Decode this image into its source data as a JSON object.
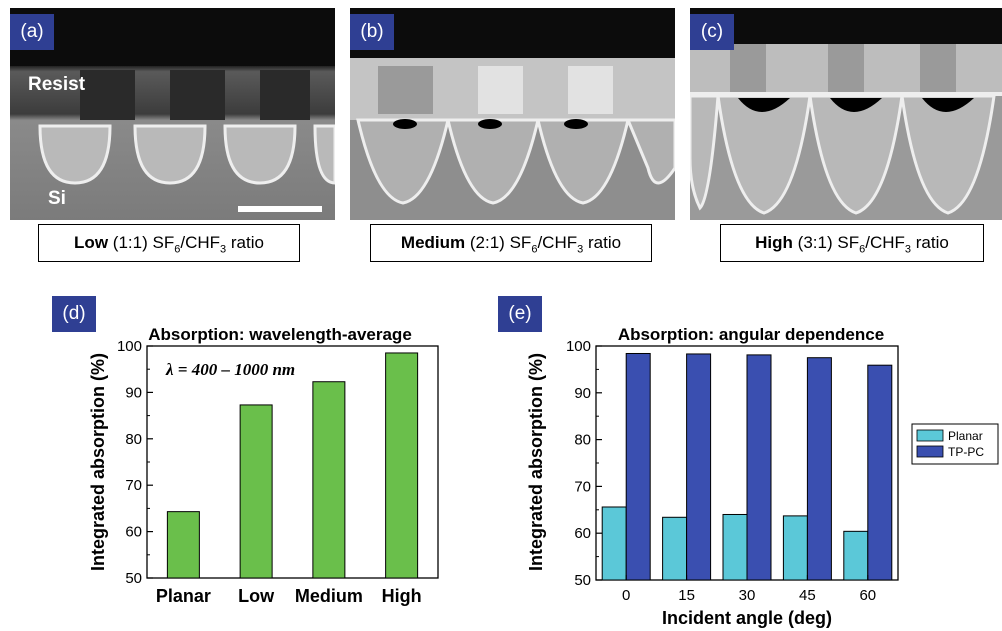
{
  "panels_top": [
    {
      "label": "(a)",
      "caption_bold": "Low",
      "caption_ratio": "(1:1)",
      "caption_rest": "ratio"
    },
    {
      "label": "(b)",
      "caption_bold": "Medium",
      "caption_ratio": "(2:1)",
      "caption_rest": "ratio"
    },
    {
      "label": "(c)",
      "caption_bold": "High",
      "caption_ratio": "(3:1)",
      "caption_rest": "ratio"
    }
  ],
  "sem_labels": {
    "resist": "Resist",
    "si": "Si"
  },
  "chem": {
    "sf": "SF",
    "sf_sub": "6",
    "slash": "/CHF",
    "chf_sub": "3"
  },
  "chart_data": [
    {
      "panel_label": "(d)",
      "type": "bar",
      "title": "Absorption: wavelength-average",
      "annotation": "λ = 400 – 1000 nm",
      "xlabel": "",
      "ylabel": "Integrated absorption (%)",
      "categories": [
        "Planar",
        "Low",
        "Medium",
        "High"
      ],
      "values": [
        64.3,
        87.3,
        92.3,
        98.5
      ],
      "ylim": [
        50,
        100
      ],
      "yticks": [
        50,
        60,
        70,
        80,
        90,
        100
      ],
      "color": "#6abf4b"
    },
    {
      "panel_label": "(e)",
      "type": "bar",
      "title": "Absorption: angular dependence",
      "xlabel": "Incident angle (deg)",
      "ylabel": "Integrated absorption (%)",
      "categories": [
        "0",
        "15",
        "30",
        "45",
        "60"
      ],
      "series": [
        {
          "name": "Planar",
          "color": "#5bc8d8",
          "values": [
            65.6,
            63.4,
            64.0,
            63.7,
            60.4
          ]
        },
        {
          "name": "TP-PC",
          "color": "#3a4fb0",
          "values": [
            98.4,
            98.3,
            98.1,
            97.5,
            95.9
          ]
        }
      ],
      "ylim": [
        50,
        100
      ],
      "yticks": [
        50,
        60,
        70,
        80,
        90,
        100
      ],
      "legend_position": "right"
    }
  ]
}
